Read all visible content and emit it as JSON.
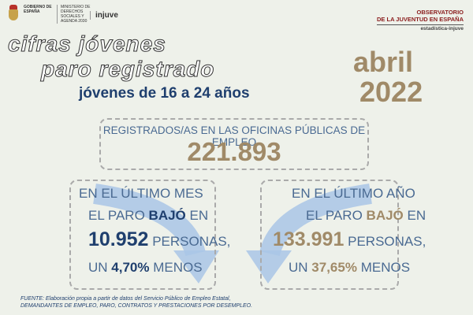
{
  "header": {
    "gov_left": "GOBIERNO DE ESPAÑA",
    "gov_right": "MINISTERIO DE DERECHOS SOCIALES Y AGENDA 2030",
    "injuve": "injuve",
    "observatorio_line1": "OBSERVATORIO",
    "observatorio_line2": "DE LA JUVENTUD EN ESPAÑA",
    "observatorio_sub": "estadística-injuve"
  },
  "title": {
    "line1": "cifras jóvenes",
    "line2": "paro registrado",
    "age_range": "jóvenes de 16 a 24 años"
  },
  "date": {
    "month": "abril",
    "year": "2022"
  },
  "summary": {
    "label": "REGISTRADOS/AS EN LAS OFICINAS PÚBLICAS DE EMPLEO",
    "value": "221.893"
  },
  "monthly": {
    "line1": "EN EL ÚLTIMO MES",
    "line2_pre": "EL PARO",
    "line2_bold": "BAJÓ",
    "line2_post": "EN",
    "number": "10.952",
    "unit": "PERSONAS,",
    "pct_pre": "UN",
    "pct": "4,70%",
    "pct_post": "MENOS"
  },
  "yearly": {
    "line1": "EN EL ÚLTIMO AÑO",
    "line2_pre": "EL PARO",
    "line2_bold": "BAJÓ",
    "line2_post": "EN",
    "number": "133.991",
    "unit": "PERSONAS,",
    "pct_pre": "UN",
    "pct": "37,65%",
    "pct_post": "MENOS"
  },
  "source": {
    "line1": "FUENTE: Elaboración propia a partir de datos del Servicio Público de Empleo Estatal,",
    "line2": "DEMANDANTES DE EMPLEO, PARO, CONTRATOS Y PRESTACIONES POR DESEMPLEO."
  }
}
